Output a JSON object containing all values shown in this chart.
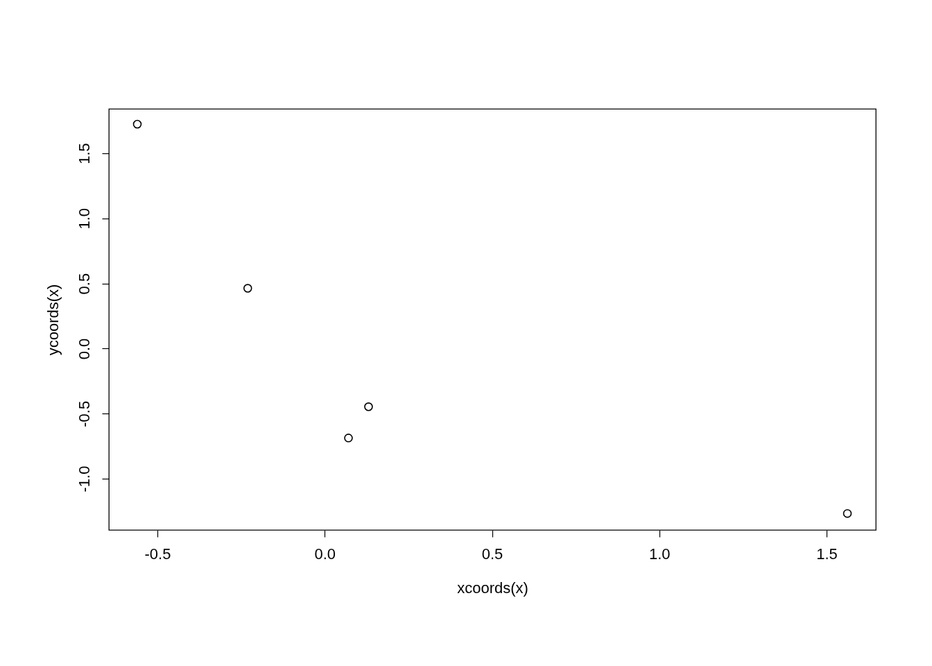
{
  "chart_data": {
    "type": "scatter",
    "xlabel": "xcoords(x)",
    "ylabel": "ycoords(x)",
    "x": [
      -0.56,
      -0.23,
      0.071,
      0.131,
      1.562
    ],
    "series": [
      {
        "color": "#000000",
        "values": [
          1.724,
          0.463,
          -0.687,
          -0.447,
          -1.267
        ]
      }
    ],
    "xlim": [
      -0.645,
      1.647
    ],
    "ylim": [
      -1.394,
      1.841
    ],
    "xticks": [
      {
        "value": -0.5,
        "label": "-0.5"
      },
      {
        "value": 0,
        "label": "0.0"
      },
      {
        "value": 0.5,
        "label": "0.5"
      },
      {
        "value": 1,
        "label": "1.0"
      },
      {
        "value": 1.5,
        "label": "1.5"
      }
    ],
    "yticks": [
      {
        "value": -1,
        "label": "-1.0"
      },
      {
        "value": -0.5,
        "label": "-0.5"
      },
      {
        "value": 0,
        "label": "0.0"
      },
      {
        "value": 0.5,
        "label": "0.5"
      },
      {
        "value": 1,
        "label": "1.0"
      },
      {
        "value": 1.5,
        "label": "1.5"
      }
    ],
    "grid": false,
    "marker": "circle"
  }
}
